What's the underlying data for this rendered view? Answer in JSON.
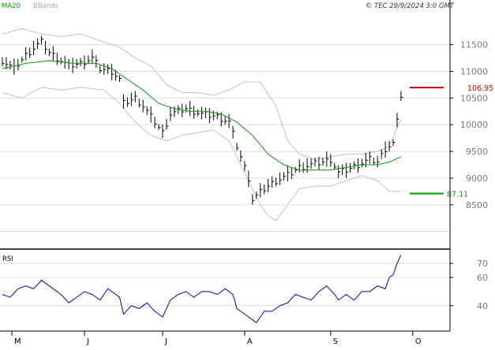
{
  "header": {
    "indicator_label": "MA20",
    "bbands_label": "BBands",
    "source_stamp": "© TEC 29/9/2024 3:0 GMT"
  },
  "colors": {
    "price_bars": "#000000",
    "ma20": "#00a000",
    "bbands": "#c0c0c0",
    "rsi": "#0000c0",
    "resistance": "#cc0000",
    "support": "#009900",
    "grid": "#dcdcdc",
    "axis": "#000000"
  },
  "chart_data": [
    {
      "type": "line",
      "panel": "price",
      "title": "",
      "y_ticks": [
        "11500",
        "11000",
        "10500",
        "10000",
        "9500",
        "9000",
        "8500"
      ],
      "y_tick_values": [
        11500,
        11000,
        10500,
        10000,
        9500,
        9000,
        8500
      ],
      "ylim": [
        7700,
        12100
      ],
      "x_ticks": [
        "M",
        "J",
        "J",
        "A",
        "S",
        "O"
      ],
      "x_tick_index": [
        0,
        21,
        41,
        62,
        84,
        105
      ],
      "n_bars": 105,
      "close_anchors": [
        [
          0,
          11200
        ],
        [
          3,
          11050
        ],
        [
          6,
          11300
        ],
        [
          9,
          11500
        ],
        [
          10,
          11550
        ],
        [
          12,
          11350
        ],
        [
          15,
          11200
        ],
        [
          17,
          11100
        ],
        [
          20,
          11150
        ],
        [
          23,
          11250
        ],
        [
          25,
          11050
        ],
        [
          28,
          11000
        ],
        [
          30,
          10850
        ],
        [
          31,
          10400
        ],
        [
          34,
          10500
        ],
        [
          36,
          10350
        ],
        [
          38,
          10150
        ],
        [
          41,
          9850
        ],
        [
          43,
          10200
        ],
        [
          47,
          10300
        ],
        [
          51,
          10200
        ],
        [
          55,
          10150
        ],
        [
          58,
          10050
        ],
        [
          60,
          9600
        ],
        [
          63,
          9000
        ],
        [
          64,
          8600
        ],
        [
          67,
          8800
        ],
        [
          70,
          8950
        ],
        [
          73,
          9050
        ],
        [
          76,
          9200
        ],
        [
          79,
          9250
        ],
        [
          82,
          9300
        ],
        [
          84,
          9350
        ],
        [
          86,
          9100
        ],
        [
          88,
          9150
        ],
        [
          91,
          9250
        ],
        [
          94,
          9350
        ],
        [
          96,
          9300
        ],
        [
          98,
          9550
        ],
        [
          100,
          9650
        ],
        [
          101,
          10050
        ],
        [
          102,
          10550
        ]
      ],
      "ma20_anchors": [
        [
          0,
          11050
        ],
        [
          6,
          11150
        ],
        [
          12,
          11200
        ],
        [
          18,
          11150
        ],
        [
          24,
          11150
        ],
        [
          28,
          11050
        ],
        [
          32,
          10850
        ],
        [
          36,
          10650
        ],
        [
          40,
          10400
        ],
        [
          44,
          10300
        ],
        [
          48,
          10250
        ],
        [
          52,
          10250
        ],
        [
          56,
          10200
        ],
        [
          60,
          10050
        ],
        [
          64,
          9800
        ],
        [
          68,
          9450
        ],
        [
          72,
          9250
        ],
        [
          76,
          9150
        ],
        [
          80,
          9150
        ],
        [
          84,
          9150
        ],
        [
          88,
          9200
        ],
        [
          92,
          9250
        ],
        [
          96,
          9250
        ],
        [
          99,
          9300
        ],
        [
          102,
          9400
        ]
      ],
      "bband_upper_anchors": [
        [
          0,
          11700
        ],
        [
          5,
          11800
        ],
        [
          10,
          11700
        ],
        [
          15,
          11650
        ],
        [
          20,
          11700
        ],
        [
          26,
          11550
        ],
        [
          30,
          11450
        ],
        [
          34,
          11250
        ],
        [
          38,
          11100
        ],
        [
          42,
          10750
        ],
        [
          46,
          10600
        ],
        [
          50,
          10600
        ],
        [
          54,
          10550
        ],
        [
          58,
          10650
        ],
        [
          62,
          10800
        ],
        [
          66,
          10800
        ],
        [
          70,
          10350
        ],
        [
          73,
          9700
        ],
        [
          76,
          9450
        ],
        [
          80,
          9350
        ],
        [
          84,
          9400
        ],
        [
          88,
          9450
        ],
        [
          92,
          9450
        ],
        [
          96,
          9500
        ],
        [
          99,
          9600
        ],
        [
          102,
          10100
        ]
      ],
      "bband_lower_anchors": [
        [
          0,
          10600
        ],
        [
          5,
          10500
        ],
        [
          10,
          10700
        ],
        [
          15,
          10650
        ],
        [
          20,
          10700
        ],
        [
          26,
          10650
        ],
        [
          30,
          10400
        ],
        [
          34,
          10050
        ],
        [
          38,
          9800
        ],
        [
          42,
          9700
        ],
        [
          46,
          9800
        ],
        [
          50,
          9850
        ],
        [
          54,
          9900
        ],
        [
          58,
          9700
        ],
        [
          62,
          9100
        ],
        [
          66,
          8500
        ],
        [
          68,
          8300
        ],
        [
          70,
          8200
        ],
        [
          73,
          8500
        ],
        [
          76,
          8800
        ],
        [
          80,
          8850
        ],
        [
          84,
          8850
        ],
        [
          88,
          8950
        ],
        [
          92,
          9050
        ],
        [
          96,
          8950
        ],
        [
          99,
          8750
        ],
        [
          102,
          8750
        ]
      ],
      "reference_lines": [
        {
          "name": "resistance",
          "value": 10695,
          "label": "106.95"
        },
        {
          "name": "support",
          "value": 8711,
          "label": "87.11"
        }
      ]
    },
    {
      "type": "line",
      "panel": "rsi",
      "title": "RSI",
      "y_ticks": [
        "70",
        "60",
        "40"
      ],
      "y_tick_values": [
        70,
        60,
        40
      ],
      "ylim": [
        22,
        79
      ],
      "rsi_anchors": [
        [
          0,
          48
        ],
        [
          2,
          46
        ],
        [
          4,
          52
        ],
        [
          6,
          54
        ],
        [
          8,
          52
        ],
        [
          10,
          58
        ],
        [
          11,
          56
        ],
        [
          13,
          52
        ],
        [
          15,
          48
        ],
        [
          17,
          42
        ],
        [
          19,
          46
        ],
        [
          21,
          50
        ],
        [
          23,
          48
        ],
        [
          25,
          44
        ],
        [
          27,
          52
        ],
        [
          28,
          50
        ],
        [
          30,
          46
        ],
        [
          31,
          34
        ],
        [
          33,
          40
        ],
        [
          35,
          38
        ],
        [
          37,
          42
        ],
        [
          39,
          36
        ],
        [
          41,
          32
        ],
        [
          43,
          44
        ],
        [
          45,
          48
        ],
        [
          47,
          50
        ],
        [
          49,
          46
        ],
        [
          51,
          50
        ],
        [
          53,
          50
        ],
        [
          55,
          48
        ],
        [
          57,
          52
        ],
        [
          59,
          48
        ],
        [
          60,
          38
        ],
        [
          62,
          34
        ],
        [
          64,
          30
        ],
        [
          65,
          28
        ],
        [
          67,
          36
        ],
        [
          69,
          36
        ],
        [
          71,
          40
        ],
        [
          73,
          42
        ],
        [
          75,
          48
        ],
        [
          77,
          46
        ],
        [
          79,
          44
        ],
        [
          81,
          50
        ],
        [
          83,
          54
        ],
        [
          85,
          48
        ],
        [
          86,
          44
        ],
        [
          88,
          48
        ],
        [
          90,
          44
        ],
        [
          92,
          50
        ],
        [
          94,
          50
        ],
        [
          96,
          54
        ],
        [
          98,
          52
        ],
        [
          99,
          60
        ],
        [
          100,
          62
        ],
        [
          101,
          70
        ],
        [
          102,
          76
        ]
      ]
    }
  ]
}
